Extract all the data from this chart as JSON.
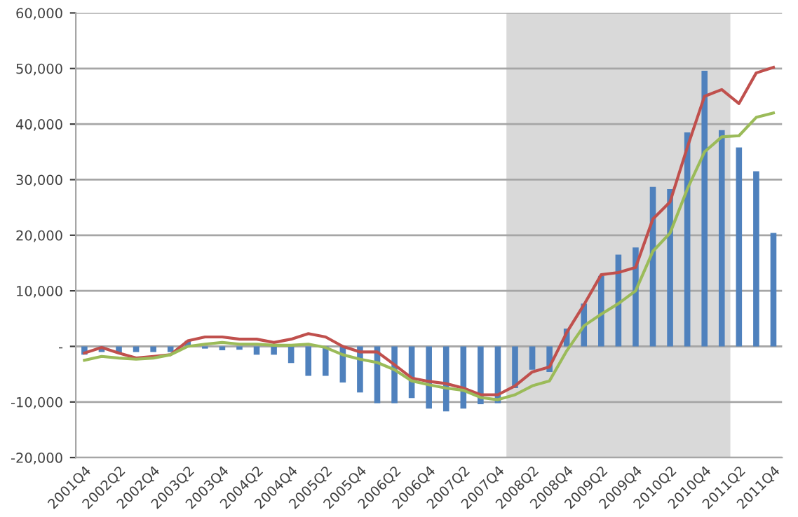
{
  "chart_data": {
    "type": "bar",
    "categories": [
      "2001Q4",
      null,
      "2002Q2",
      null,
      "2002Q4",
      null,
      "2003Q2",
      null,
      "2003Q4",
      null,
      "2004Q2",
      null,
      "2004Q4",
      null,
      "2005Q2",
      null,
      "2005Q4",
      null,
      "2006Q2",
      null,
      "2006Q4",
      null,
      "2007Q2",
      null,
      "2007Q4",
      null,
      "2008Q2",
      null,
      "2008Q4",
      null,
      "2009Q2",
      null,
      "2009Q4",
      null,
      "2010Q2",
      null,
      "2010Q4",
      null,
      "2011Q2",
      null,
      "2011Q4"
    ],
    "series": [
      {
        "color": "#4f81bd",
        "values": [
          -1500,
          -1000,
          -1200,
          -1000,
          -1000,
          -1000,
          1000,
          -400,
          -700,
          -600,
          -1500,
          -1500,
          -3000,
          -5300,
          -5300,
          -6500,
          -8300,
          -10200,
          -10200,
          -9300,
          -11200,
          -11700,
          -11200,
          -10400,
          -10200,
          -7500,
          -4200,
          -4600,
          3200,
          7700,
          12700,
          16500,
          17800,
          28700,
          28300,
          38500,
          49600,
          38900,
          35800,
          31500,
          20400
        ]
      },
      {
        "type": "line",
        "color": "#c0504d",
        "values": [
          -1200,
          -200,
          -1200,
          -2100,
          -1800,
          -1500,
          1000,
          1700,
          1700,
          1300,
          1300,
          700,
          1300,
          2300,
          1700,
          0,
          -1000,
          -1000,
          -3300,
          -5700,
          -6300,
          -6700,
          -7500,
          -8700,
          -8700,
          -7100,
          -4600,
          -3700,
          2500,
          7500,
          12900,
          13300,
          14200,
          22900,
          26000,
          35800,
          45000,
          46200,
          43700,
          49200,
          50200
        ]
      },
      {
        "type": "line",
        "color": "#9bbb59",
        "values": [
          -2500,
          -1800,
          -2100,
          -2300,
          -2100,
          -1500,
          0,
          400,
          700,
          400,
          400,
          200,
          200,
          400,
          -200,
          -1500,
          -2300,
          -2900,
          -4200,
          -6200,
          -6900,
          -7500,
          -7900,
          -9200,
          -9600,
          -8700,
          -7100,
          -6200,
          -800,
          3700,
          5800,
          7700,
          10000,
          17100,
          20400,
          28300,
          35000,
          37700,
          37900,
          41200,
          42000
        ]
      }
    ],
    "bands": [
      {
        "axis": "x",
        "from": "2007Q4",
        "to": "2011Q2",
        "color": "#d9d9d9"
      }
    ],
    "ylim": [
      -20000,
      60000
    ],
    "yticks": [
      {
        "value": -20000,
        "label": "-20,000"
      },
      {
        "value": -10000,
        "label": "-10,000"
      },
      {
        "value": 0,
        "label": "-"
      },
      {
        "value": 10000,
        "label": "10,000"
      },
      {
        "value": 20000,
        "label": "20,000"
      },
      {
        "value": 30000,
        "label": "30,000"
      },
      {
        "value": 40000,
        "label": "40,000"
      },
      {
        "value": 50000,
        "label": "50,000"
      },
      {
        "value": 60000,
        "label": "60,000"
      }
    ],
    "grid": "y",
    "marker": "none",
    "line_style": "solid",
    "legend": false
  }
}
